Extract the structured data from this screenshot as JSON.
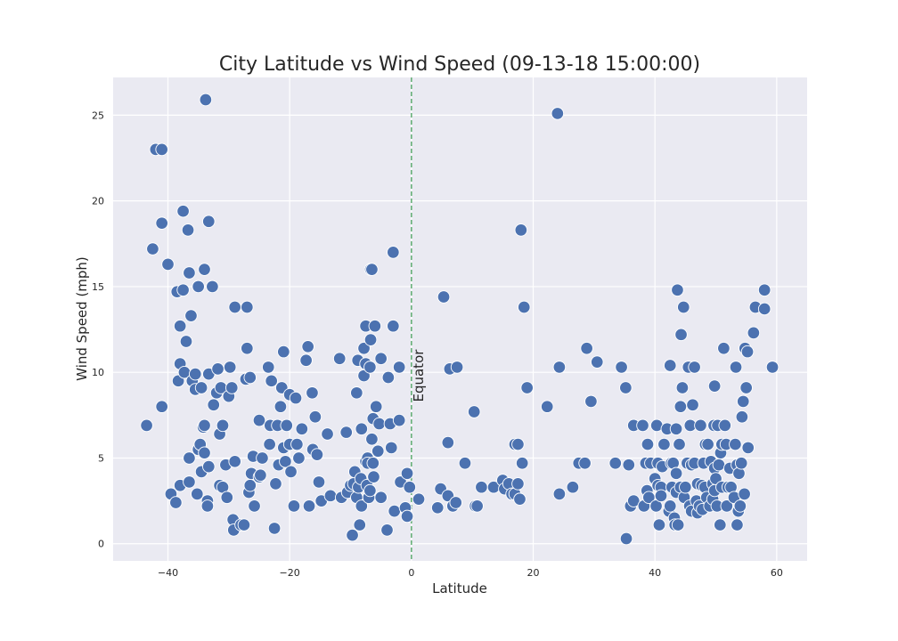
{
  "chart_data": {
    "type": "scatter",
    "title": "City Latitude vs Wind Speed (09-13-18 15:00:00)",
    "xlabel": "Latitude",
    "ylabel": "Wind Speed (mph)",
    "xlim": [
      -49,
      65
    ],
    "ylim": [
      -1,
      27.2
    ],
    "xticks": [
      -40,
      -20,
      0,
      20,
      40,
      60
    ],
    "yticks": [
      0,
      5,
      10,
      15,
      20,
      25
    ],
    "grid": true,
    "background": "#eaeaf2",
    "point_color": "#4c72b0",
    "reference_line": {
      "x": 0,
      "color": "#55a868",
      "style": "dashed",
      "label": "Equator"
    },
    "points": [
      [
        -43.5,
        6.9
      ],
      [
        -42.5,
        17.2
      ],
      [
        -42,
        23.0
      ],
      [
        -41,
        23.0
      ],
      [
        -41,
        18.7
      ],
      [
        -41,
        8.0
      ],
      [
        -40,
        16.3
      ],
      [
        -39.5,
        2.9
      ],
      [
        -38.7,
        2.4
      ],
      [
        -38.5,
        14.7
      ],
      [
        -38.3,
        9.5
      ],
      [
        -38,
        12.7
      ],
      [
        -38,
        10.5
      ],
      [
        -38,
        3.4
      ],
      [
        -37.5,
        19.4
      ],
      [
        -37.5,
        14.8
      ],
      [
        -37.3,
        10.0
      ],
      [
        -37,
        11.8
      ],
      [
        -36.7,
        18.3
      ],
      [
        -36.5,
        15.8
      ],
      [
        -36.5,
        5.0
      ],
      [
        -36.5,
        3.6
      ],
      [
        -36.2,
        13.3
      ],
      [
        -36,
        9.5
      ],
      [
        -35.5,
        9.0
      ],
      [
        -35.5,
        9.9
      ],
      [
        -35.2,
        2.9
      ],
      [
        -35,
        5.5
      ],
      [
        -35,
        15.0
      ],
      [
        -34.7,
        5.8
      ],
      [
        -34.5,
        9.1
      ],
      [
        -34.5,
        4.2
      ],
      [
        -34.2,
        6.8
      ],
      [
        -34,
        6.9
      ],
      [
        -34,
        5.3
      ],
      [
        -34,
        16.0
      ],
      [
        -33.8,
        25.9
      ],
      [
        -33.5,
        2.5
      ],
      [
        -33.5,
        2.2
      ],
      [
        -33.3,
        4.5
      ],
      [
        -33.3,
        9.9
      ],
      [
        -33.3,
        18.8
      ],
      [
        -32.7,
        15.0
      ],
      [
        -32.5,
        8.1
      ],
      [
        -32,
        8.8
      ],
      [
        -31.8,
        10.2
      ],
      [
        -31.5,
        3.4
      ],
      [
        -31.5,
        6.4
      ],
      [
        -31.3,
        9.1
      ],
      [
        -31,
        6.9
      ],
      [
        -31,
        3.3
      ],
      [
        -30.5,
        4.6
      ],
      [
        -30.3,
        2.7
      ],
      [
        -30,
        8.6
      ],
      [
        -29.8,
        10.3
      ],
      [
        -29.5,
        9.1
      ],
      [
        -29.3,
        1.4
      ],
      [
        -29.2,
        0.8
      ],
      [
        -29,
        4.8
      ],
      [
        -29,
        13.8
      ],
      [
        -28,
        1.1
      ],
      [
        -27.5,
        1.1
      ],
      [
        -27.2,
        9.6
      ],
      [
        -27,
        11.4
      ],
      [
        -27,
        13.8
      ],
      [
        -26.7,
        3.0
      ],
      [
        -26.5,
        3.4
      ],
      [
        -26.5,
        9.7
      ],
      [
        -26.3,
        4.1
      ],
      [
        -26,
        5.1
      ],
      [
        -25.8,
        2.2
      ],
      [
        -25,
        3.9
      ],
      [
        -25,
        7.2
      ],
      [
        -24.5,
        5.0
      ],
      [
        -24.8,
        4.0
      ],
      [
        -23.5,
        10.3
      ],
      [
        -23.3,
        5.8
      ],
      [
        -23.2,
        6.9
      ],
      [
        -23,
        9.5
      ],
      [
        -22.5,
        0.9
      ],
      [
        -22.3,
        3.5
      ],
      [
        -22,
        6.9
      ],
      [
        -21.8,
        4.6
      ],
      [
        -21.5,
        8.0
      ],
      [
        -21.3,
        9.1
      ],
      [
        -21,
        11.2
      ],
      [
        -21,
        5.6
      ],
      [
        -20.7,
        4.8
      ],
      [
        -20.5,
        6.9
      ],
      [
        -20,
        5.8
      ],
      [
        -20,
        8.7
      ],
      [
        -19.8,
        4.2
      ],
      [
        -19.3,
        2.2
      ],
      [
        -19,
        8.5
      ],
      [
        -18.8,
        5.8
      ],
      [
        -18.5,
        5.0
      ],
      [
        -18,
        6.7
      ],
      [
        -17.3,
        10.7
      ],
      [
        -17,
        11.5
      ],
      [
        -16.8,
        2.2
      ],
      [
        -16.3,
        8.8
      ],
      [
        -16.2,
        5.5
      ],
      [
        -15.8,
        7.4
      ],
      [
        -15.5,
        5.2
      ],
      [
        -15.2,
        3.6
      ],
      [
        -14.8,
        2.5
      ],
      [
        -13.8,
        6.4
      ],
      [
        -13.3,
        2.8
      ],
      [
        -11.8,
        10.8
      ],
      [
        -11.5,
        2.7
      ],
      [
        -10.7,
        6.5
      ],
      [
        -10.5,
        3.0
      ],
      [
        -10,
        3.4
      ],
      [
        -9.7,
        0.5
      ],
      [
        -9.5,
        3.5
      ],
      [
        -9.3,
        4.2
      ],
      [
        -9,
        2.7
      ],
      [
        -9,
        8.8
      ],
      [
        -8.8,
        10.7
      ],
      [
        -8.7,
        3.3
      ],
      [
        -8.5,
        1.1
      ],
      [
        -8.3,
        3.8
      ],
      [
        -8.2,
        6.7
      ],
      [
        -8.2,
        2.2
      ],
      [
        -7.8,
        11.4
      ],
      [
        -7.8,
        9.8
      ],
      [
        -7.5,
        12.7
      ],
      [
        -7.5,
        10.5
      ],
      [
        -7.5,
        4.8
      ],
      [
        -7.3,
        3.4
      ],
      [
        -7.2,
        5.0
      ],
      [
        -7.2,
        4.7
      ],
      [
        -7,
        2.7
      ],
      [
        -6.8,
        10.3
      ],
      [
        -6.8,
        3.1
      ],
      [
        -6.7,
        11.9
      ],
      [
        -6.7,
        16.0
      ],
      [
        -6.5,
        16.0
      ],
      [
        -6.5,
        6.1
      ],
      [
        -6.3,
        7.3
      ],
      [
        -6.3,
        4.7
      ],
      [
        -6.2,
        3.9
      ],
      [
        -6,
        12.7
      ],
      [
        -5.8,
        8.0
      ],
      [
        -5.5,
        5.4
      ],
      [
        -5.3,
        7.0
      ],
      [
        -5,
        10.8
      ],
      [
        -5,
        2.7
      ],
      [
        -4,
        0.8
      ],
      [
        -3.8,
        9.7
      ],
      [
        -3.5,
        7.0
      ],
      [
        -3.3,
        5.6
      ],
      [
        -3,
        17.0
      ],
      [
        -3,
        12.7
      ],
      [
        -2.8,
        1.9
      ],
      [
        -2,
        10.3
      ],
      [
        -2,
        7.2
      ],
      [
        -1.8,
        3.6
      ],
      [
        -1,
        2.1
      ],
      [
        -0.7,
        4.1
      ],
      [
        -0.7,
        1.6
      ],
      [
        -0.3,
        3.3
      ],
      [
        1.2,
        2.6
      ],
      [
        4.3,
        2.1
      ],
      [
        4.8,
        3.2
      ],
      [
        5.3,
        14.4
      ],
      [
        6,
        5.9
      ],
      [
        6,
        2.8
      ],
      [
        6.3,
        10.2
      ],
      [
        6.8,
        2.2
      ],
      [
        7.3,
        2.4
      ],
      [
        7.5,
        10.3
      ],
      [
        8.8,
        4.7
      ],
      [
        10.3,
        7.7
      ],
      [
        10.5,
        2.2
      ],
      [
        10.8,
        2.2
      ],
      [
        11.5,
        3.3
      ],
      [
        13.5,
        3.3
      ],
      [
        15,
        3.7
      ],
      [
        15.3,
        3.2
      ],
      [
        16,
        3.5
      ],
      [
        16.5,
        2.9
      ],
      [
        17,
        5.8
      ],
      [
        17,
        2.9
      ],
      [
        17.5,
        5.8
      ],
      [
        17.5,
        3.5
      ],
      [
        17.8,
        2.6
      ],
      [
        18,
        18.3
      ],
      [
        18.2,
        4.7
      ],
      [
        18.5,
        13.8
      ],
      [
        19,
        9.1
      ],
      [
        22.3,
        8.0
      ],
      [
        24,
        25.1
      ],
      [
        24.3,
        10.3
      ],
      [
        24.3,
        2.9
      ],
      [
        26.5,
        3.3
      ],
      [
        27.5,
        4.7
      ],
      [
        28.5,
        4.7
      ],
      [
        28.8,
        11.4
      ],
      [
        29.5,
        8.3
      ],
      [
        30.5,
        10.6
      ],
      [
        33.5,
        4.7
      ],
      [
        34.5,
        10.3
      ],
      [
        35.2,
        9.1
      ],
      [
        35.3,
        0.3
      ],
      [
        35.7,
        4.6
      ],
      [
        36,
        2.2
      ],
      [
        36.5,
        2.5
      ],
      [
        36.5,
        6.9
      ],
      [
        38,
        6.9
      ],
      [
        38.2,
        2.2
      ],
      [
        38.5,
        4.7
      ],
      [
        38.7,
        3.1
      ],
      [
        38.8,
        5.8
      ],
      [
        39,
        2.7
      ],
      [
        39.3,
        4.7
      ],
      [
        40,
        3.8
      ],
      [
        40.2,
        2.2
      ],
      [
        40.3,
        6.9
      ],
      [
        40.5,
        4.7
      ],
      [
        40.5,
        3.4
      ],
      [
        40.7,
        1.1
      ],
      [
        41,
        3.3
      ],
      [
        41,
        2.8
      ],
      [
        41.2,
        4.5
      ],
      [
        41.5,
        5.8
      ],
      [
        42,
        6.7
      ],
      [
        42.3,
        1.9
      ],
      [
        42.5,
        10.4
      ],
      [
        42.5,
        2.2
      ],
      [
        42.7,
        4.7
      ],
      [
        42.8,
        3.3
      ],
      [
        43,
        4.7
      ],
      [
        43.2,
        1.5
      ],
      [
        43.3,
        1.1
      ],
      [
        43.5,
        3.0
      ],
      [
        43.5,
        4.1
      ],
      [
        43.5,
        6.7
      ],
      [
        43.7,
        14.8
      ],
      [
        43.8,
        1.1
      ],
      [
        44,
        5.8
      ],
      [
        44.2,
        3.3
      ],
      [
        44.2,
        8.0
      ],
      [
        44.3,
        12.2
      ],
      [
        44.5,
        9.1
      ],
      [
        44.7,
        13.8
      ],
      [
        44.8,
        2.7
      ],
      [
        45,
        3.3
      ],
      [
        45.3,
        4.7
      ],
      [
        45.5,
        10.3
      ],
      [
        45.7,
        2.2
      ],
      [
        45.8,
        6.9
      ],
      [
        46,
        1.9
      ],
      [
        46,
        4.6
      ],
      [
        46.2,
        8.1
      ],
      [
        46.5,
        10.3
      ],
      [
        46.5,
        4.7
      ],
      [
        46.8,
        2.5
      ],
      [
        47,
        3.5
      ],
      [
        47,
        1.8
      ],
      [
        47.3,
        2.2
      ],
      [
        47.5,
        6.9
      ],
      [
        47.7,
        3.4
      ],
      [
        47.8,
        2.0
      ],
      [
        48,
        4.7
      ],
      [
        48.2,
        3.3
      ],
      [
        48.3,
        5.8
      ],
      [
        48.5,
        2.7
      ],
      [
        48.7,
        5.8
      ],
      [
        49,
        2.2
      ],
      [
        49.2,
        4.8
      ],
      [
        49.5,
        3.5
      ],
      [
        49.5,
        2.6
      ],
      [
        49.7,
        6.9
      ],
      [
        49.8,
        3.1
      ],
      [
        49.8,
        9.2
      ],
      [
        49.8,
        4.4
      ],
      [
        50,
        3.8
      ],
      [
        50.2,
        2.2
      ],
      [
        50.3,
        6.9
      ],
      [
        50.5,
        4.6
      ],
      [
        50.7,
        1.1
      ],
      [
        50.8,
        5.3
      ],
      [
        51,
        3.3
      ],
      [
        51,
        5.8
      ],
      [
        51.3,
        11.4
      ],
      [
        51.5,
        6.9
      ],
      [
        51.7,
        5.8
      ],
      [
        51.8,
        2.2
      ],
      [
        52,
        3.3
      ],
      [
        52.3,
        4.4
      ],
      [
        52.5,
        3.3
      ],
      [
        53,
        2.7
      ],
      [
        53.2,
        5.8
      ],
      [
        53.3,
        10.3
      ],
      [
        53.5,
        1.1
      ],
      [
        53.5,
        4.6
      ],
      [
        53.7,
        1.9
      ],
      [
        53.8,
        4.1
      ],
      [
        54,
        2.2
      ],
      [
        54.2,
        4.7
      ],
      [
        54.3,
        7.4
      ],
      [
        54.5,
        8.3
      ],
      [
        54.7,
        2.9
      ],
      [
        54.8,
        11.4
      ],
      [
        55,
        9.1
      ],
      [
        55.2,
        11.2
      ],
      [
        55.3,
        5.6
      ],
      [
        56.2,
        12.3
      ],
      [
        56.5,
        13.8
      ],
      [
        58,
        14.8
      ],
      [
        58,
        13.7
      ],
      [
        59.3,
        10.3
      ]
    ]
  }
}
